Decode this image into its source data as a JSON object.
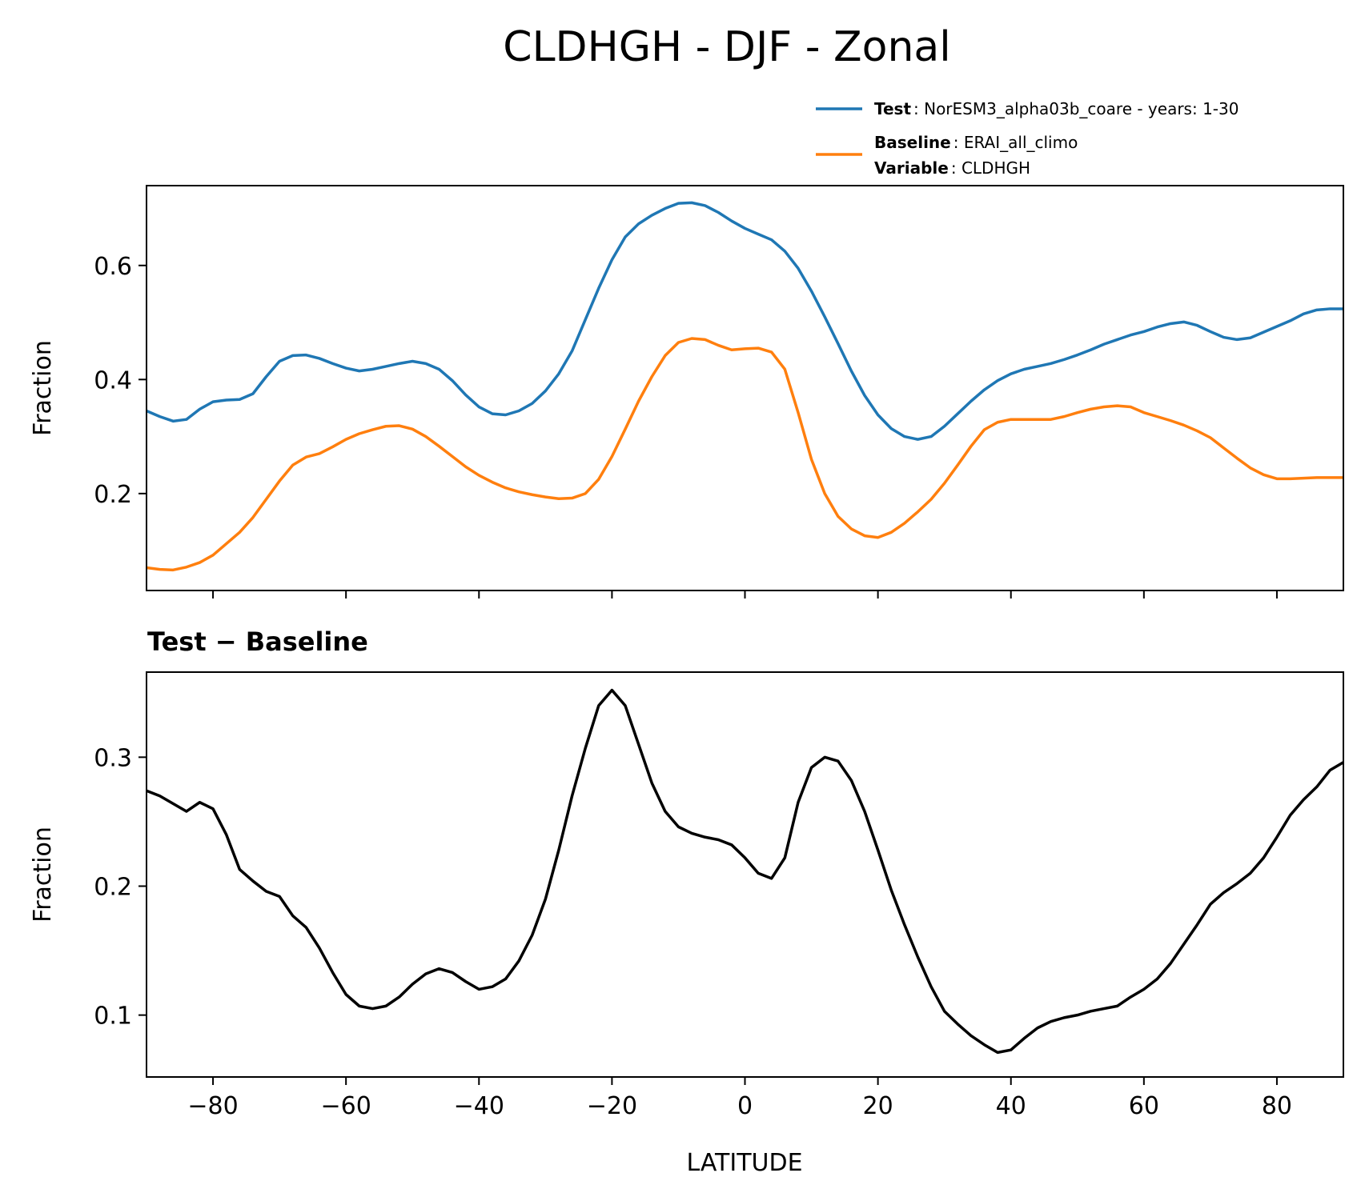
{
  "chart_data": {
    "type": "line",
    "title": "CLDHGH - DJF - Zonal",
    "colors": {
      "test": "#1f77b4",
      "baseline": "#ff7f0e",
      "difference": "#000000"
    },
    "legend": {
      "placement": "above-top-right",
      "entries": [
        {
          "series": "test",
          "rows": [
            {
              "key": "Test",
              "value": ": NorESM3_alpha03b_coare - years: 1-30"
            }
          ]
        },
        {
          "series": "baseline",
          "rows": [
            {
              "key": "Baseline",
              "value": ": ERAI_all_climo"
            },
            {
              "key": "Variable",
              "value": ": CLDHGH"
            }
          ]
        }
      ]
    },
    "panels": [
      {
        "id": "top",
        "title": "",
        "ylabel": "Fraction",
        "xlabel": "",
        "xlim": [
          -90,
          90
        ],
        "ylim": [
          0.03,
          0.74
        ],
        "xticks": [
          -80,
          -60,
          -40,
          -20,
          0,
          20,
          40,
          60,
          80
        ],
        "xtick_labels_shown": false,
        "yticks": [
          0.2,
          0.4,
          0.6
        ],
        "ytick_labels": [
          "0.2",
          "0.4",
          "0.6"
        ],
        "series": [
          {
            "name": "Test",
            "color_key": "test",
            "x": [
              -90,
              -88,
              -86,
              -84,
              -82,
              -80,
              -78,
              -76,
              -74,
              -72,
              -70,
              -68,
              -66,
              -64,
              -62,
              -60,
              -58,
              -56,
              -54,
              -52,
              -50,
              -48,
              -46,
              -44,
              -42,
              -40,
              -38,
              -36,
              -34,
              -32,
              -30,
              -28,
              -26,
              -24,
              -22,
              -20,
              -18,
              -16,
              -14,
              -12,
              -10,
              -8,
              -6,
              -4,
              -2,
              0,
              2,
              4,
              6,
              8,
              10,
              12,
              14,
              16,
              18,
              20,
              22,
              24,
              26,
              28,
              30,
              32,
              34,
              36,
              38,
              40,
              42,
              44,
              46,
              48,
              50,
              52,
              54,
              56,
              58,
              60,
              62,
              64,
              66,
              68,
              70,
              72,
              74,
              76,
              78,
              80,
              82,
              84,
              86,
              88,
              90
            ],
            "y": [
              0.345,
              0.335,
              0.327,
              0.33,
              0.348,
              0.361,
              0.364,
              0.365,
              0.375,
              0.405,
              0.432,
              0.442,
              0.443,
              0.437,
              0.428,
              0.42,
              0.415,
              0.418,
              0.423,
              0.428,
              0.432,
              0.428,
              0.418,
              0.398,
              0.373,
              0.352,
              0.34,
              0.338,
              0.345,
              0.358,
              0.38,
              0.41,
              0.45,
              0.505,
              0.56,
              0.61,
              0.65,
              0.673,
              0.688,
              0.7,
              0.709,
              0.71,
              0.705,
              0.693,
              0.678,
              0.665,
              0.655,
              0.645,
              0.625,
              0.595,
              0.555,
              0.51,
              0.463,
              0.415,
              0.372,
              0.338,
              0.314,
              0.3,
              0.295,
              0.3,
              0.318,
              0.34,
              0.362,
              0.382,
              0.398,
              0.41,
              0.418,
              0.423,
              0.428,
              0.435,
              0.443,
              0.452,
              0.462,
              0.47,
              0.478,
              0.484,
              0.492,
              0.498,
              0.501,
              0.495,
              0.484,
              0.474,
              0.47,
              0.473,
              0.483,
              0.493,
              0.503,
              0.515,
              0.522,
              0.524,
              0.524
            ]
          },
          {
            "name": "Baseline",
            "color_key": "baseline",
            "x": [
              -90,
              -88,
              -86,
              -84,
              -82,
              -80,
              -78,
              -76,
              -74,
              -72,
              -70,
              -68,
              -66,
              -64,
              -62,
              -60,
              -58,
              -56,
              -54,
              -52,
              -50,
              -48,
              -46,
              -44,
              -42,
              -40,
              -38,
              -36,
              -34,
              -32,
              -30,
              -28,
              -26,
              -24,
              -22,
              -20,
              -18,
              -16,
              -14,
              -12,
              -10,
              -8,
              -6,
              -4,
              -2,
              0,
              2,
              4,
              6,
              8,
              10,
              12,
              14,
              16,
              18,
              20,
              22,
              24,
              26,
              28,
              30,
              32,
              34,
              36,
              38,
              40,
              42,
              44,
              46,
              48,
              50,
              52,
              54,
              56,
              58,
              60,
              62,
              64,
              66,
              68,
              70,
              72,
              74,
              76,
              78,
              80,
              82,
              84,
              86,
              88,
              90
            ],
            "y": [
              0.07,
              0.067,
              0.066,
              0.071,
              0.079,
              0.092,
              0.112,
              0.132,
              0.158,
              0.19,
              0.222,
              0.25,
              0.264,
              0.27,
              0.282,
              0.295,
              0.305,
              0.312,
              0.318,
              0.319,
              0.313,
              0.3,
              0.283,
              0.265,
              0.247,
              0.232,
              0.22,
              0.21,
              0.203,
              0.198,
              0.194,
              0.191,
              0.192,
              0.2,
              0.225,
              0.265,
              0.313,
              0.362,
              0.405,
              0.442,
              0.465,
              0.472,
              0.47,
              0.46,
              0.452,
              0.454,
              0.455,
              0.448,
              0.418,
              0.342,
              0.26,
              0.2,
              0.16,
              0.138,
              0.126,
              0.123,
              0.132,
              0.148,
              0.168,
              0.19,
              0.218,
              0.25,
              0.283,
              0.312,
              0.325,
              0.33,
              0.33,
              0.33,
              0.33,
              0.335,
              0.342,
              0.348,
              0.352,
              0.354,
              0.352,
              0.342,
              0.335,
              0.328,
              0.32,
              0.31,
              0.298,
              0.28,
              0.262,
              0.245,
              0.233,
              0.226,
              0.226,
              0.227,
              0.228,
              0.228,
              0.228
            ]
          }
        ]
      },
      {
        "id": "bottom",
        "title": "Test − Baseline",
        "ylabel": "Fraction",
        "xlabel": "LATITUDE",
        "xlim": [
          -90,
          90
        ],
        "ylim": [
          0.052,
          0.366
        ],
        "xticks": [
          -80,
          -60,
          -40,
          -20,
          0,
          20,
          40,
          60,
          80
        ],
        "xtick_labels": [
          "−80",
          "−60",
          "−40",
          "−20",
          "0",
          "20",
          "40",
          "60",
          "80"
        ],
        "xtick_labels_shown": true,
        "yticks": [
          0.1,
          0.2,
          0.3
        ],
        "ytick_labels": [
          "0.1",
          "0.2",
          "0.3"
        ],
        "series": [
          {
            "name": "Test − Baseline",
            "color_key": "difference",
            "x": [
              -90,
              -88,
              -86,
              -84,
              -82,
              -80,
              -78,
              -76,
              -74,
              -72,
              -70,
              -68,
              -66,
              -64,
              -62,
              -60,
              -58,
              -56,
              -54,
              -52,
              -50,
              -48,
              -46,
              -44,
              -42,
              -40,
              -38,
              -36,
              -34,
              -32,
              -30,
              -28,
              -26,
              -24,
              -22,
              -20,
              -18,
              -16,
              -14,
              -12,
              -10,
              -8,
              -6,
              -4,
              -2,
              0,
              2,
              4,
              6,
              8,
              10,
              12,
              14,
              16,
              18,
              20,
              22,
              24,
              26,
              28,
              30,
              32,
              34,
              36,
              38,
              40,
              42,
              44,
              46,
              48,
              50,
              52,
              54,
              56,
              58,
              60,
              62,
              64,
              66,
              68,
              70,
              72,
              74,
              76,
              78,
              80,
              82,
              84,
              86,
              88,
              90
            ],
            "y": [
              0.274,
              0.27,
              0.264,
              0.258,
              0.265,
              0.26,
              0.24,
              0.213,
              0.204,
              0.196,
              0.192,
              0.177,
              0.168,
              0.152,
              0.133,
              0.116,
              0.107,
              0.105,
              0.107,
              0.114,
              0.124,
              0.132,
              0.136,
              0.133,
              0.126,
              0.12,
              0.122,
              0.128,
              0.142,
              0.162,
              0.19,
              0.228,
              0.27,
              0.307,
              0.34,
              0.352,
              0.34,
              0.31,
              0.28,
              0.258,
              0.246,
              0.241,
              0.238,
              0.236,
              0.232,
              0.222,
              0.21,
              0.206,
              0.222,
              0.265,
              0.292,
              0.3,
              0.297,
              0.282,
              0.258,
              0.228,
              0.197,
              0.17,
              0.145,
              0.122,
              0.103,
              0.093,
              0.084,
              0.077,
              0.071,
              0.073,
              0.082,
              0.09,
              0.095,
              0.098,
              0.1,
              0.103,
              0.105,
              0.107,
              0.114,
              0.12,
              0.128,
              0.14,
              0.155,
              0.17,
              0.186,
              0.195,
              0.202,
              0.21,
              0.222,
              0.238,
              0.255,
              0.267,
              0.277,
              0.29,
              0.296
            ]
          }
        ]
      }
    ]
  }
}
